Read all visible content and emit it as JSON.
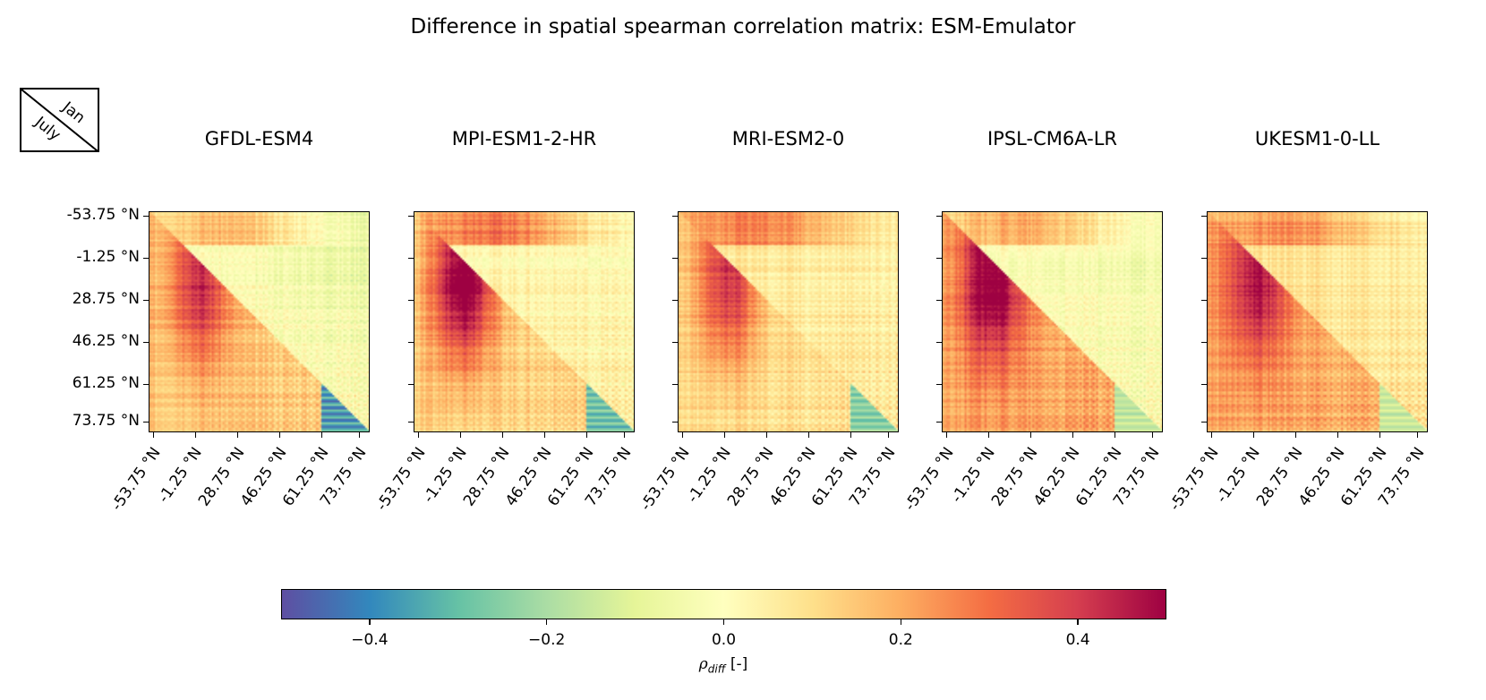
{
  "chart_data": {
    "type": "heatmap",
    "title": "Difference in spatial spearman correlation matrix: ESM-Emulator",
    "layout_legend": {
      "upper_triangle": "Jan",
      "lower_triangle": "July"
    },
    "panels": [
      {
        "name": "GFDL-ESM4",
        "notes": "Upper (Jan) mostly near 0 with weak negative streaks; lower (July) positive ~0.2-0.3 in tropics; strong negative block (~-0.45) at high latitudes below diagonal",
        "upper_mean": 0.02,
        "lower_mean": 0.14,
        "tropical_hotspot": 0.3,
        "polar_block": -0.45
      },
      {
        "name": "MPI-ESM1-2-HR",
        "notes": "Strong positive hotspot (~0.45) near -1.25 °N; negative block (~-0.35) at high latitudes",
        "upper_mean": 0.05,
        "lower_mean": 0.12,
        "tropical_hotspot": 0.45,
        "polar_block": -0.35
      },
      {
        "name": "MRI-ESM2-0",
        "notes": "Positive upper band at southern latitudes; negative patterns at high latitudes",
        "upper_mean": 0.08,
        "lower_mean": 0.1,
        "tropical_hotspot": 0.32,
        "polar_block": -0.3
      },
      {
        "name": "IPSL-CM6A-LR",
        "notes": "Upper (Jan) near 0 to slightly negative; lower (July) broadly positive ~0.2",
        "upper_mean": 0.0,
        "lower_mean": 0.2,
        "tropical_hotspot": 0.35,
        "polar_block": -0.2
      },
      {
        "name": "UKESM1-0-LL",
        "notes": "Broadly positive in both triangles; weak negative streaks; mild high-latitude negative block",
        "upper_mean": 0.1,
        "lower_mean": 0.2,
        "tropical_hotspot": 0.28,
        "polar_block": -0.18
      }
    ],
    "x_tick_labels": [
      "-53.75 °N",
      "-1.25 °N",
      "28.75 °N",
      "46.25 °N",
      "61.25 °N",
      "73.75 °N"
    ],
    "y_tick_labels": [
      "-53.75 °N",
      "-1.25 °N",
      "28.75 °N",
      "46.25 °N",
      "61.25 °N",
      "73.75 °N"
    ],
    "colorbar": {
      "colormap": "Spectral_r",
      "range": [
        -0.5,
        0.5
      ],
      "ticks": [
        -0.4,
        -0.2,
        0.0,
        0.2,
        0.4
      ],
      "tick_labels": [
        "−0.4",
        "−0.2",
        "0.0",
        "0.2",
        "0.4"
      ],
      "label_symbol": "ρ",
      "label_subscript": "diff",
      "label_unit": "[-]",
      "stops": [
        "#5e4fa2",
        "#3288bd",
        "#66c2a5",
        "#abdda4",
        "#e6f598",
        "#ffffbf",
        "#fee08b",
        "#fdae61",
        "#f46d43",
        "#d53e4f",
        "#9e0142"
      ]
    }
  }
}
